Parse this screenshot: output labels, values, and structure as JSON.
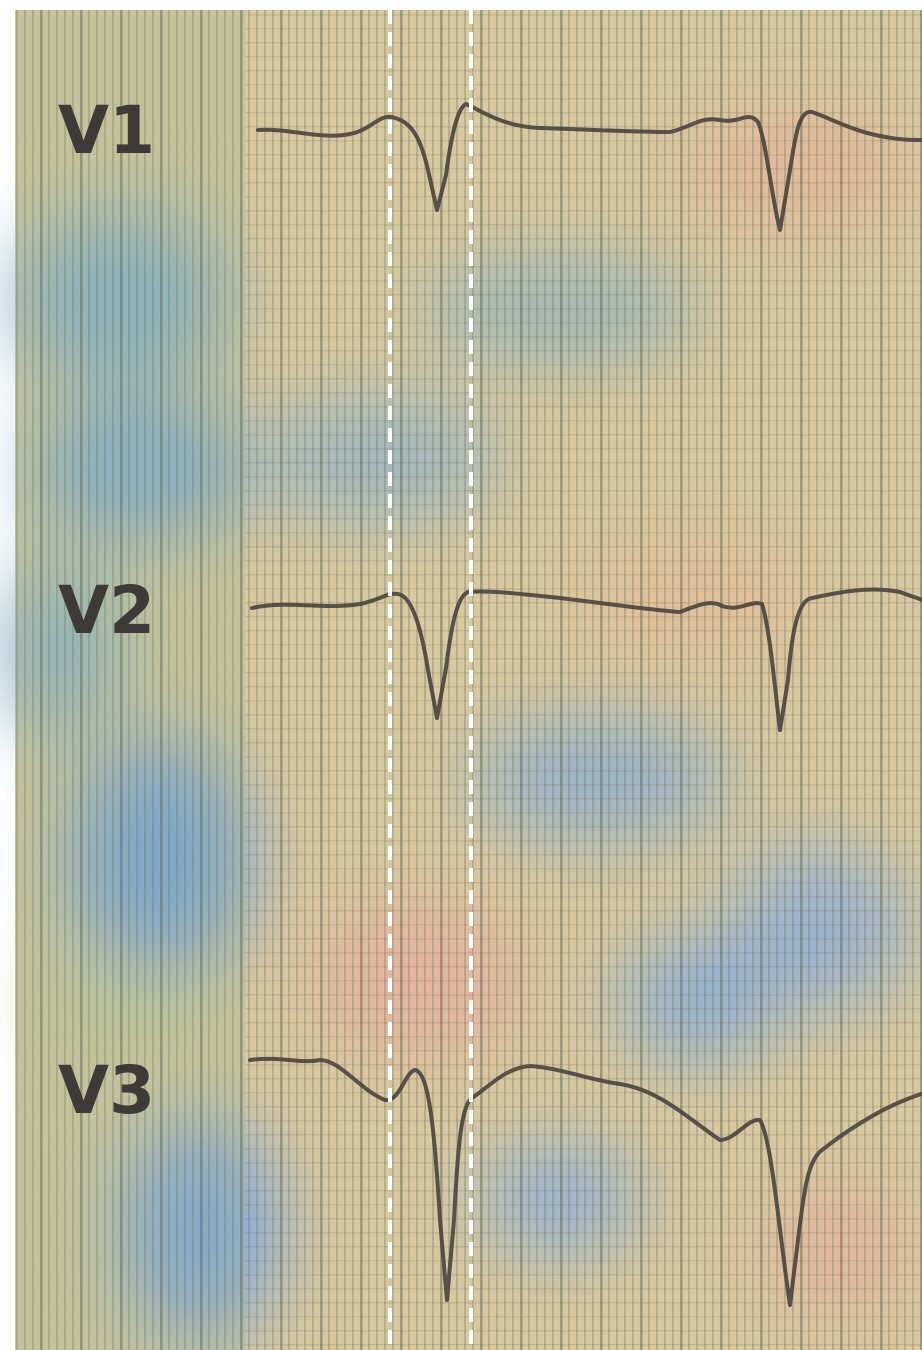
{
  "leads": [
    {
      "label": "V1"
    },
    {
      "label": "V2"
    },
    {
      "label": "V3"
    }
  ]
}
